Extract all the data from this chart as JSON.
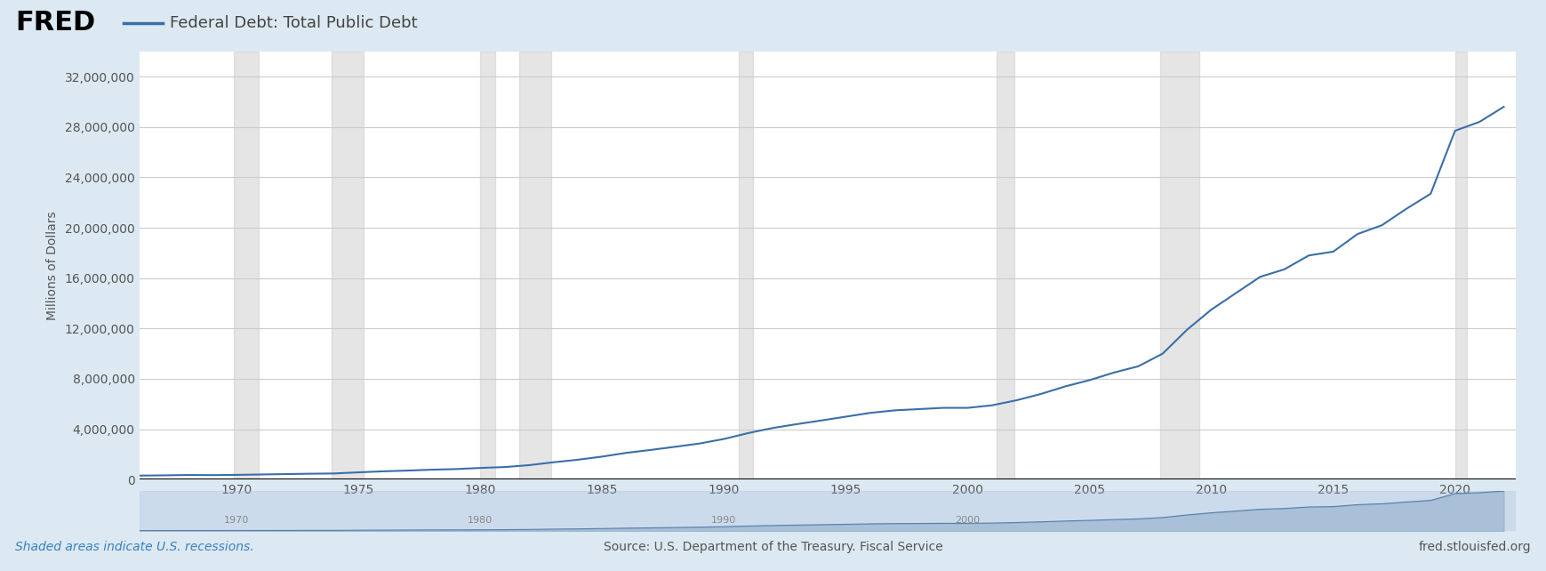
{
  "title": "Federal Debt: Total Public Debt",
  "ylabel": "Millions of Dollars",
  "line_color": "#3a6fa8",
  "background_color": "#dce9f2",
  "plot_bg_color": "#ffffff",
  "recession_color": "#cccccc",
  "recession_alpha": 0.5,
  "ylim": [
    0,
    34000000
  ],
  "yticks": [
    0,
    4000000,
    8000000,
    12000000,
    16000000,
    20000000,
    24000000,
    28000000,
    32000000
  ],
  "ytick_labels": [
    "0",
    "4,000,000",
    "8,000,000",
    "12,000,000",
    "16,000,000",
    "20,000,000",
    "24,000,000",
    "28,000,000",
    "32,000,000"
  ],
  "xlim_start": 1966.0,
  "xlim_end": 2022.5,
  "xticks": [
    1970,
    1975,
    1980,
    1985,
    1990,
    1995,
    2000,
    2005,
    2010,
    2015,
    2020
  ],
  "fred_text": "FRED",
  "source_text": "Source: U.S. Department of the Treasury. Fiscal Service",
  "website_text": "fred.stlouisfed.org",
  "recession_note": "Shaded areas indicate U.S. recessions.",
  "recessions": [
    [
      1969.9,
      1970.9
    ],
    [
      1973.9,
      1975.2
    ],
    [
      1980.0,
      1980.6
    ],
    [
      1981.6,
      1982.9
    ],
    [
      1990.6,
      1991.2
    ],
    [
      2001.2,
      2001.9
    ],
    [
      2007.9,
      2009.5
    ],
    [
      2020.0,
      2020.5
    ]
  ],
  "data_years": [
    1966,
    1967,
    1968,
    1969,
    1970,
    1971,
    1972,
    1973,
    1974,
    1975,
    1976,
    1977,
    1978,
    1979,
    1980,
    1981,
    1982,
    1983,
    1984,
    1985,
    1986,
    1987,
    1988,
    1989,
    1990,
    1991,
    1992,
    1993,
    1994,
    1995,
    1996,
    1997,
    1998,
    1999,
    2000,
    2001,
    2002,
    2003,
    2004,
    2005,
    2006,
    2007,
    2008,
    2009,
    2010,
    2011,
    2012,
    2013,
    2014,
    2015,
    2016,
    2017,
    2018,
    2019,
    2020,
    2021,
    2022
  ],
  "data_values": [
    320000,
    340000,
    370000,
    360000,
    380000,
    410000,
    440000,
    470000,
    490000,
    580000,
    660000,
    720000,
    790000,
    840000,
    930000,
    1000000,
    1150000,
    1380000,
    1580000,
    1830000,
    2130000,
    2360000,
    2610000,
    2870000,
    3230000,
    3700000,
    4100000,
    4410000,
    4700000,
    5000000,
    5300000,
    5500000,
    5600000,
    5700000,
    5700000,
    5900000,
    6300000,
    6800000,
    7400000,
    7900000,
    8500000,
    9000000,
    10000000,
    11900000,
    13500000,
    14800000,
    16100000,
    16700000,
    17800000,
    18100000,
    19500000,
    20200000,
    21500000,
    22700000,
    27700000,
    28400000,
    29600000
  ]
}
